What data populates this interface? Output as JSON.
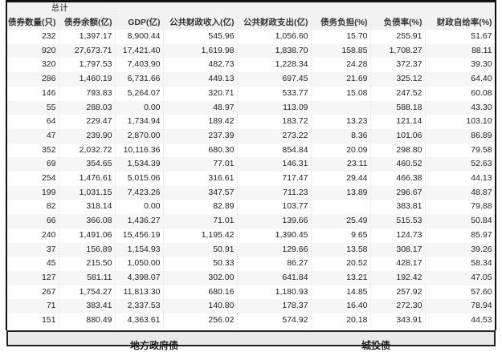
{
  "table": {
    "group_header": "总计",
    "columns": [
      "债券数量(只)",
      "债券余额(亿)",
      "GDP(亿)",
      "公共财政收入(亿)",
      "公共财政支出(亿)",
      "债务负担(%)",
      "负债率(%)",
      "财政自给率(%)"
    ],
    "rows": [
      [
        "232",
        "1,397.17",
        "8,900.44",
        "545.96",
        "1,056.60",
        "15.70",
        "255.91",
        "51.67"
      ],
      [
        "920",
        "27,673.71",
        "17,421.40",
        "1,619.98",
        "1,838.70",
        "158.85",
        "1,708.27",
        "88.11"
      ],
      [
        "320",
        "1,797.53",
        "7,403.90",
        "482.73",
        "1,228.34",
        "24.28",
        "372.37",
        "39.30"
      ],
      [
        "286",
        "1,460.19",
        "6,731.66",
        "449.13",
        "697.45",
        "21.69",
        "325.12",
        "64.40"
      ],
      [
        "146",
        "793.83",
        "5,264.07",
        "320.71",
        "533.77",
        "15.08",
        "247.52",
        "60.08"
      ],
      [
        "55",
        "288.03",
        "0.00",
        "48.97",
        "113.09",
        "",
        "588.18",
        "43.30"
      ],
      [
        "64",
        "229.47",
        "1,734.94",
        "189.42",
        "183.72",
        "13.23",
        "121.14",
        "103.10"
      ],
      [
        "47",
        "239.90",
        "2,870.00",
        "237.39",
        "273.22",
        "8.36",
        "101.06",
        "86.89"
      ],
      [
        "352",
        "2,032.72",
        "10,116.36",
        "680.30",
        "854.84",
        "20.09",
        "298.80",
        "79.58"
      ],
      [
        "69",
        "354.65",
        "1,534.39",
        "77.01",
        "146.31",
        "23.11",
        "460.52",
        "52.63"
      ],
      [
        "254",
        "1,476.61",
        "5,015.06",
        "316.61",
        "717.47",
        "29.44",
        "466.38",
        "44.13"
      ],
      [
        "199",
        "1,031.15",
        "7,423.26",
        "347.57",
        "711.23",
        "13.89",
        "296.67",
        "48.87"
      ],
      [
        "82",
        "318.14",
        "0.00",
        "82.89",
        "103.77",
        "",
        "383.81",
        "79.88"
      ],
      [
        "66",
        "366.08",
        "1,436.27",
        "71.01",
        "139.66",
        "25.49",
        "515.53",
        "50.84"
      ],
      [
        "240",
        "1,491.06",
        "15,456.19",
        "1,195.42",
        "1,390.45",
        "9.65",
        "124.73",
        "85.97"
      ],
      [
        "37",
        "156.89",
        "1,154.93",
        "50.91",
        "129.66",
        "13.58",
        "308.17",
        "39.26"
      ],
      [
        "45",
        "215.50",
        "1,050.00",
        "50.33",
        "86.27",
        "20.52",
        "428.17",
        "58.34"
      ],
      [
        "127",
        "581.11",
        "4,398.07",
        "302.00",
        "641.84",
        "13.21",
        "192.42",
        "47.05"
      ],
      [
        "267",
        "1,754.27",
        "11,813.30",
        "680.16",
        "1,180.93",
        "14.85",
        "257.92",
        "57.60"
      ],
      [
        "71",
        "383.41",
        "2,337.53",
        "140.80",
        "178.37",
        "16.40",
        "272.30",
        "78.94"
      ],
      [
        "151",
        "880.49",
        "4,363.61",
        "256.02",
        "574.92",
        "20.18",
        "343.91",
        "44.53"
      ]
    ]
  },
  "bottom_panel": {
    "left_label": "地方政府债",
    "right_label": "城投债"
  }
}
